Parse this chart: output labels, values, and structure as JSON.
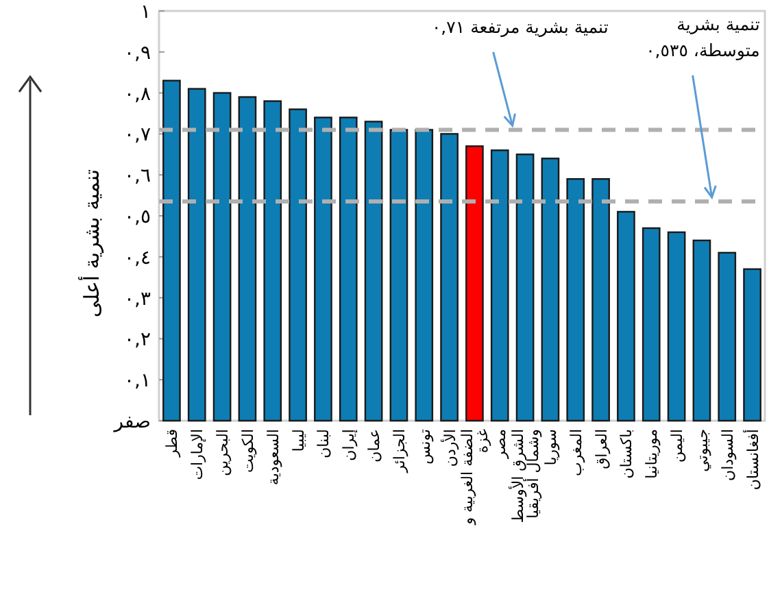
{
  "chart_data": {
    "type": "bar",
    "ylabel": "تنمية بشرية أعلى",
    "categories": [
      "قطر",
      "الإمارات",
      "البحرين",
      "الكويت",
      "السعودية",
      "ليبيا",
      "لبنان",
      "إيران",
      "عمان",
      "الجزائر",
      "تونس",
      "الأردن",
      "الضفة الغربية و غزة",
      "مصر",
      "الشرق الأوسط وشمال أفريقيا",
      "سوريا",
      "المغرب",
      "العراق",
      "باكستان",
      "موريتانيا",
      "اليمن",
      "جيبوتي",
      "السودان",
      "أفغانستان"
    ],
    "values": [
      0.83,
      0.81,
      0.8,
      0.79,
      0.78,
      0.76,
      0.74,
      0.74,
      0.73,
      0.71,
      0.71,
      0.7,
      0.67,
      0.66,
      0.65,
      0.64,
      0.59,
      0.59,
      0.51,
      0.47,
      0.46,
      0.44,
      0.41,
      0.37
    ],
    "colors": [
      "#0e7db3",
      "#0e7db3",
      "#0e7db3",
      "#0e7db3",
      "#0e7db3",
      "#0e7db3",
      "#0e7db3",
      "#0e7db3",
      "#0e7db3",
      "#0e7db3",
      "#0e7db3",
      "#0e7db3",
      "#ff0000",
      "#0e7db3",
      "#0e7db3",
      "#0e7db3",
      "#0e7db3",
      "#0e7db3",
      "#0e7db3",
      "#0e7db3",
      "#0e7db3",
      "#0e7db3",
      "#0e7db3",
      "#0e7db3"
    ],
    "ylim": [
      0,
      1
    ],
    "yticks": [
      {
        "value": 0,
        "label": "صفر"
      },
      {
        "value": 0.1,
        "label": "٠,١"
      },
      {
        "value": 0.2,
        "label": "٠,٢"
      },
      {
        "value": 0.3,
        "label": "٠,٣"
      },
      {
        "value": 0.4,
        "label": "٠,٤"
      },
      {
        "value": 0.5,
        "label": "٠,٥"
      },
      {
        "value": 0.6,
        "label": "٠,٦"
      },
      {
        "value": 0.7,
        "label": "٠,٧"
      },
      {
        "value": 0.8,
        "label": "٠,٨"
      },
      {
        "value": 0.9,
        "label": "٠,٩"
      },
      {
        "value": 1,
        "label": "١"
      }
    ],
    "ref_lines": [
      {
        "axis": "y",
        "value": 0.71,
        "label": "تنمية بشرية مرتفعة ٠,٧١",
        "color": "#b0b0b0",
        "line_style": "dashed"
      },
      {
        "axis": "y",
        "value": 0.535,
        "label": "تنمية بشرية\nمتوسطة، ٠,٥٣٥",
        "color": "#b0b0b0",
        "line_style": "dashed"
      }
    ],
    "grid": false
  }
}
